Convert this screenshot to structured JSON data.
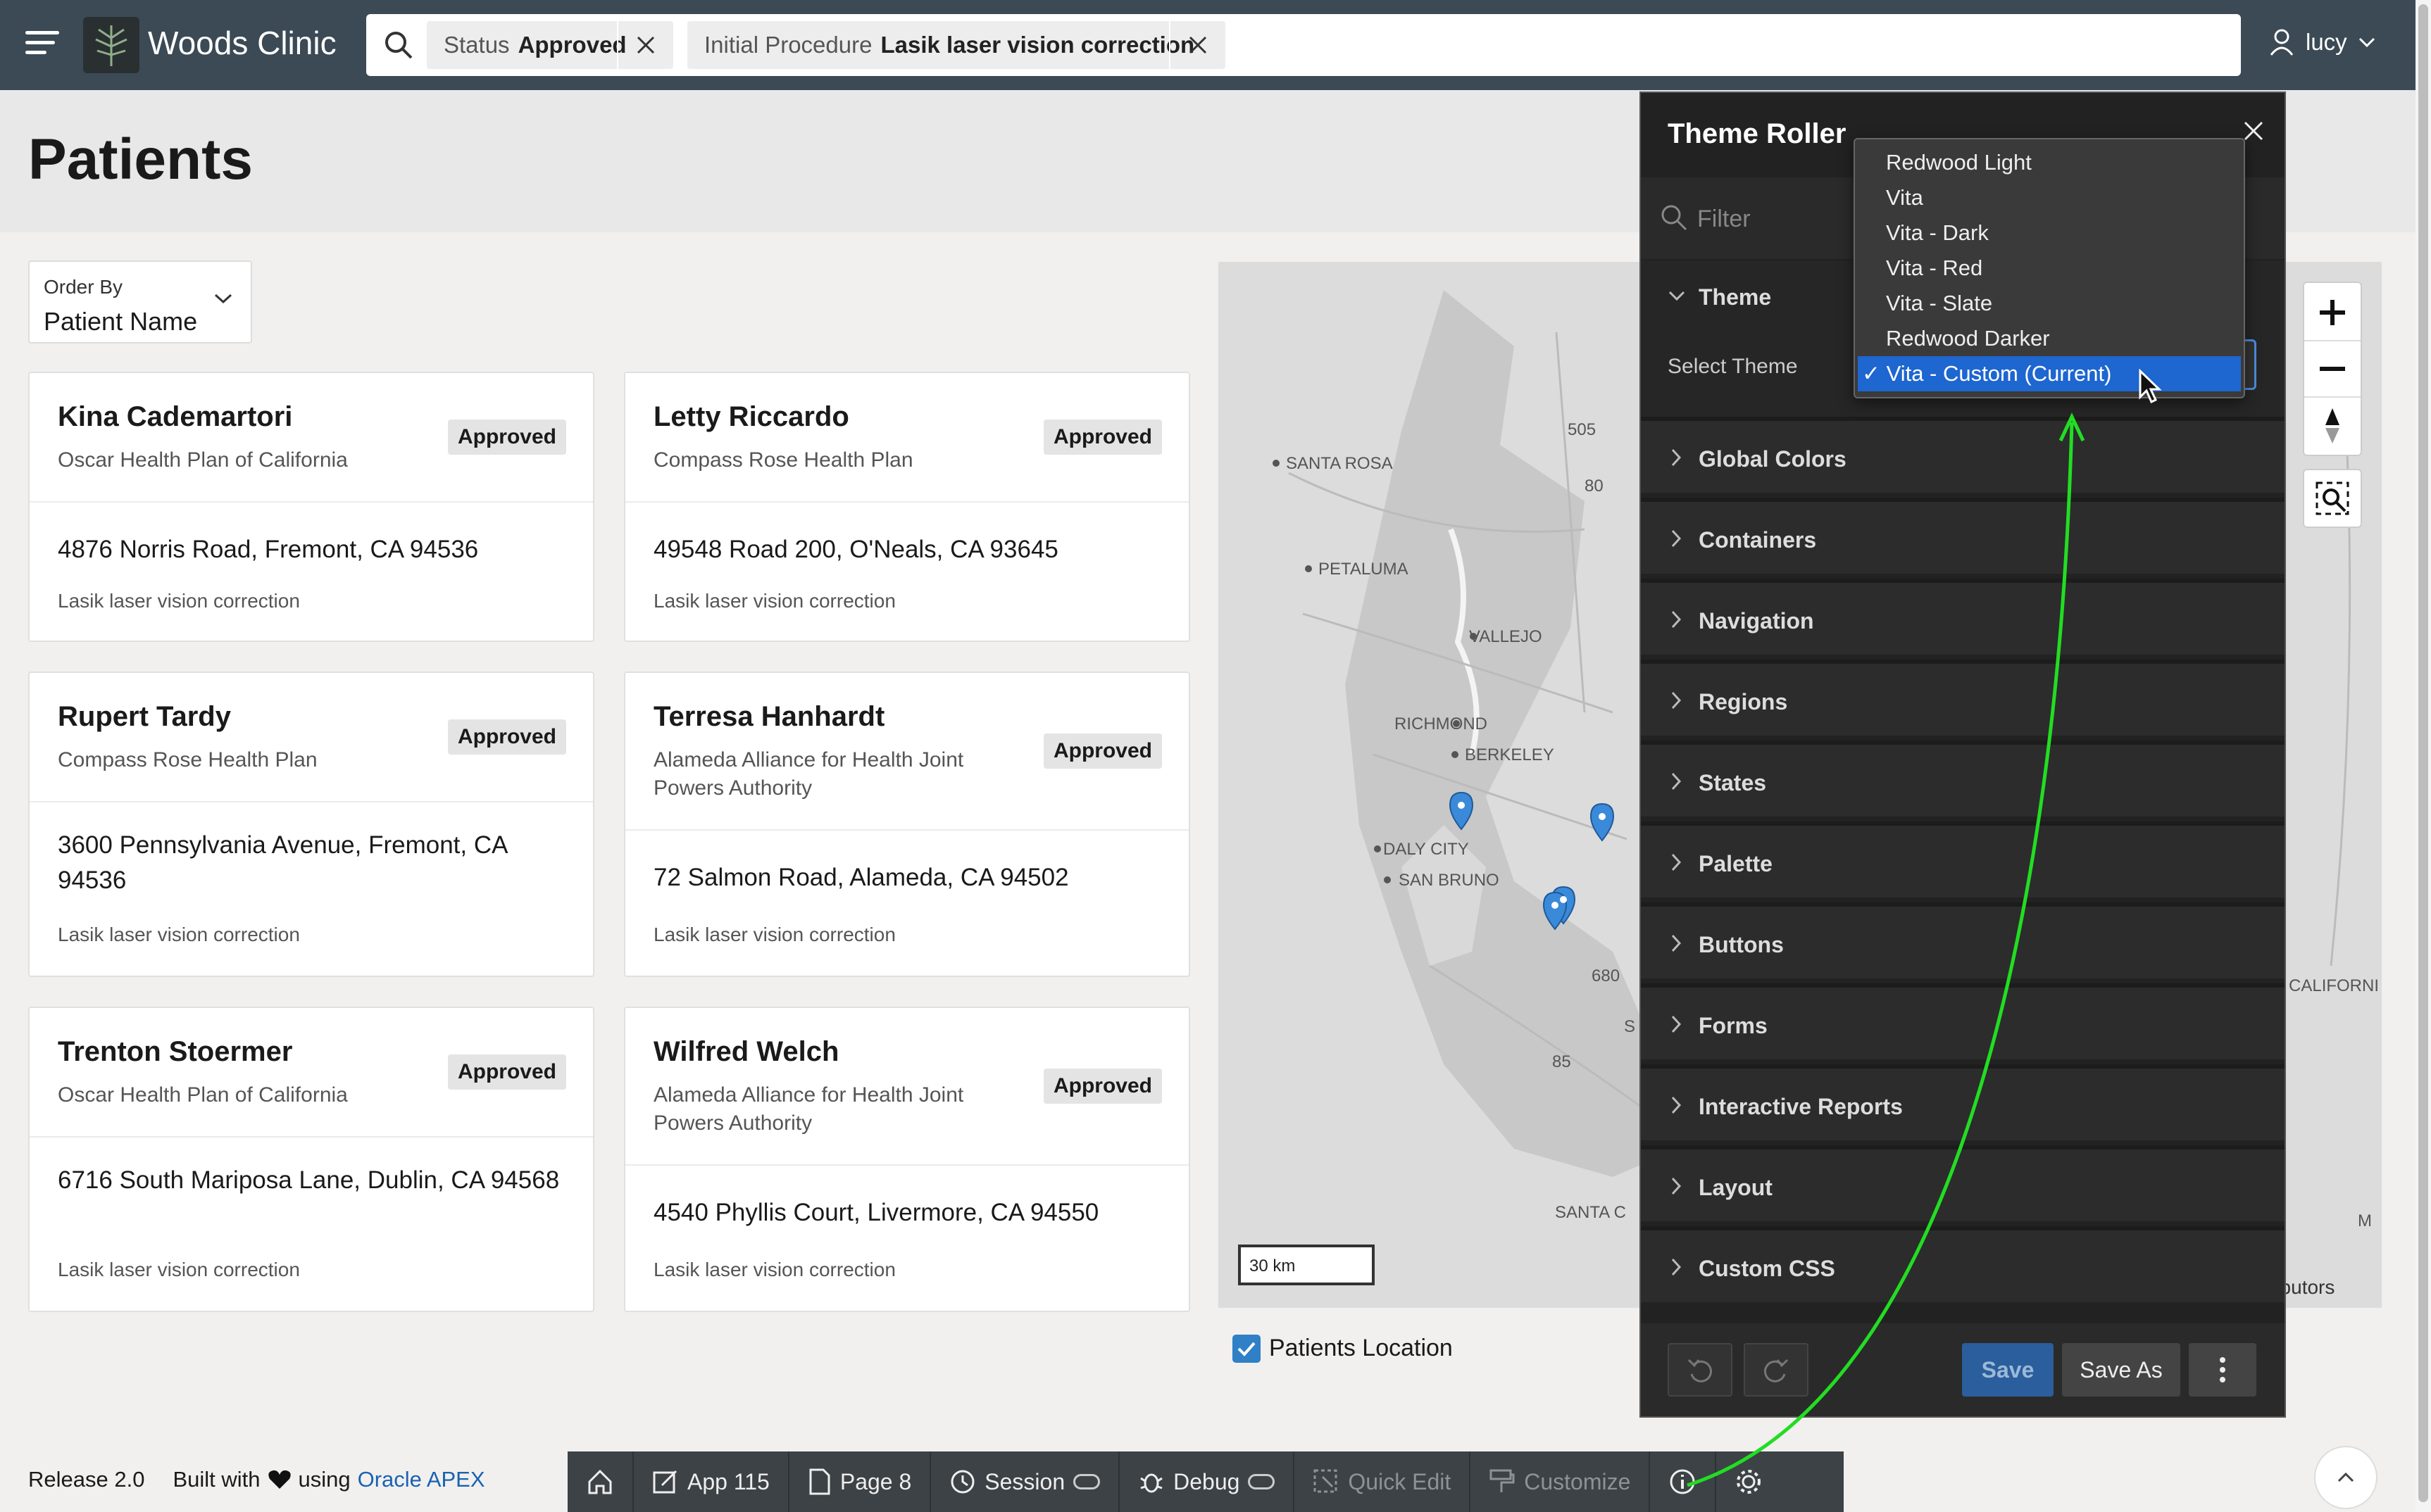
{
  "app": {
    "title": "Woods Clinic"
  },
  "search": {
    "chips": [
      {
        "label": "Status",
        "value": "Approved"
      },
      {
        "label": "Initial Procedure",
        "value": "Lasik laser vision correction"
      }
    ]
  },
  "user": {
    "name": "lucy"
  },
  "page": {
    "title": "Patients"
  },
  "order_by": {
    "label": "Order By",
    "value": "Patient Name"
  },
  "patients": [
    {
      "name": "Kina Cademartori",
      "plan": "Oscar Health Plan of California",
      "status": "Approved",
      "address": "4876 Norris Road, Fremont, CA 94536",
      "procedure": "Lasik laser vision correction"
    },
    {
      "name": "Letty Riccardo",
      "plan": "Compass Rose Health Plan",
      "status": "Approved",
      "address": "49548 Road 200, O'Neals, CA 93645",
      "procedure": "Lasik laser vision correction"
    },
    {
      "name": "Rupert Tardy",
      "plan": "Compass Rose Health Plan",
      "status": "Approved",
      "address": "3600 Pennsylvania Avenue, Fremont, CA 94536",
      "procedure": "Lasik laser vision correction"
    },
    {
      "name": "Terresa Hanhardt",
      "plan": "Alameda Alliance for Health Joint Powers Authority",
      "status": "Approved",
      "address": "72 Salmon Road, Alameda, CA 94502",
      "procedure": "Lasik laser vision correction"
    },
    {
      "name": "Trenton Stoermer",
      "plan": "Oscar Health Plan of California",
      "status": "Approved",
      "address": "6716 South Mariposa Lane, Dublin, CA 94568",
      "procedure": "Lasik laser vision correction"
    },
    {
      "name": "Wilfred Welch",
      "plan": "Alameda Alliance for Health Joint Powers Authority",
      "status": "Approved",
      "address": "4540 Phyllis Court, Livermore, CA 94550",
      "procedure": "Lasik laser vision correction"
    }
  ],
  "map": {
    "labels": [
      "SANTA ROSA",
      "PETALUMA",
      "VALLEJO",
      "RICHMOND",
      "BERKELEY",
      "DALY CITY",
      "SAN BRUNO",
      "SANTA C",
      "505",
      "80",
      "680",
      "85",
      "CALIFORNI",
      "M",
      "S"
    ],
    "scale": "30 km",
    "attribution": "ributors",
    "checkbox_label": "Patients Location",
    "pin_color": "#3b8ad9"
  },
  "theme_roller": {
    "title": "Theme Roller",
    "filter_placeholder": "Filter",
    "theme_section": "Theme",
    "select_theme_label": "Select Theme",
    "theme_options": [
      "Redwood Light",
      "Vita",
      "Vita - Dark",
      "Vita - Red",
      "Vita - Slate",
      "Redwood Darker",
      "Vita - Custom (Current)"
    ],
    "selected_option": "✓ Vita - Custom (Current)",
    "sections": [
      "Global Colors",
      "Containers",
      "Navigation",
      "Regions",
      "States",
      "Palette",
      "Buttons",
      "Forms",
      "Interactive Reports",
      "Layout",
      "Custom CSS"
    ],
    "save_label": "Save",
    "save_as_label": "Save As"
  },
  "footer": {
    "release": "Release 2.0",
    "built_with": "Built with",
    "using": "using",
    "apex_link": "Oracle APEX"
  },
  "devbar": {
    "app": "App 115",
    "page": "Page 8",
    "session": "Session",
    "debug": "Debug",
    "quick_edit": "Quick Edit",
    "customize": "Customize"
  },
  "colors": {
    "topbar": "#3b4a55",
    "accent": "#1e66d0",
    "annotation_arrow": "#22dd22"
  }
}
